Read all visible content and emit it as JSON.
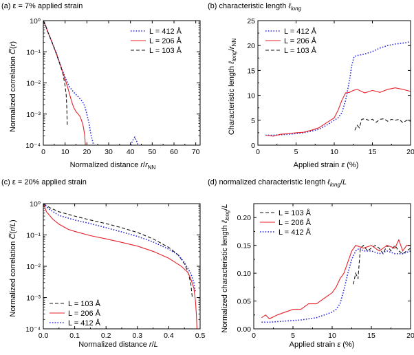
{
  "colors": {
    "L412": "#2b2bd6",
    "L206": "#e8202a",
    "L103": "#111111",
    "axis": "#000000"
  },
  "chart_data": [
    {
      "id": "a",
      "type": "line",
      "title": "(a) ε = 7% applied strain",
      "xlabel": "Normalized distance r/r_NN",
      "ylabel": "Normalized correlation C̅(r)",
      "xlim": [
        0,
        72
      ],
      "ylim": [
        0.0001,
        1
      ],
      "yscale": "log",
      "xticks": [
        0,
        10,
        20,
        30,
        40,
        50,
        60,
        70
      ],
      "xtick_labels": [
        "0",
        "10",
        "20",
        "30",
        "40",
        "50",
        "60",
        "70"
      ],
      "ytick_labels": [
        "10⁻⁴",
        "10⁻³",
        "10⁻²",
        "10⁻¹",
        "10⁰"
      ],
      "legend": [
        {
          "label": "L = 412 Å",
          "style": "dotted",
          "color": "#2b2bd6"
        },
        {
          "label": "L = 206 Å",
          "style": "solid",
          "color": "#e8202a"
        },
        {
          "label": "L = 103 Å",
          "style": "dashed",
          "color": "#111111"
        }
      ],
      "legend_position": "top-right",
      "series": [
        {
          "name": "L = 412 Å",
          "x": [
            0,
            1,
            2,
            4,
            6,
            8,
            10,
            12,
            14,
            16,
            18,
            19,
            20,
            21,
            21.5,
            22,
            22.8,
            23.2
          ],
          "y": [
            1,
            0.7,
            0.45,
            0.2,
            0.09,
            0.035,
            0.015,
            0.0075,
            0.005,
            0.0036,
            0.0025,
            0.0018,
            0.001,
            0.0005,
            0.0003,
            0.0002,
            0.00012,
            0.0001
          ]
        },
        {
          "name": "L = 412 Å (tail)",
          "x": [
            40.2,
            41,
            42,
            42.8,
            43.5
          ],
          "y": [
            0.0001,
            0.00014,
            0.00018,
            0.00014,
            0.0001
          ]
        },
        {
          "name": "L = 206 Å",
          "x": [
            0,
            1,
            2,
            4,
            6,
            8,
            10,
            11,
            12,
            13,
            14,
            15,
            16,
            17,
            18,
            18.5,
            19,
            19.3
          ],
          "y": [
            1,
            0.7,
            0.45,
            0.2,
            0.085,
            0.035,
            0.013,
            0.008,
            0.0045,
            0.0025,
            0.0016,
            0.0012,
            0.001,
            0.0008,
            0.0005,
            0.00035,
            0.0002,
            0.0001
          ]
        },
        {
          "name": "L = 103 Å",
          "x": [
            0,
            1,
            2,
            4,
            6,
            8,
            9,
            10,
            10.5,
            10.8,
            11
          ],
          "y": [
            1,
            0.7,
            0.45,
            0.2,
            0.085,
            0.033,
            0.02,
            0.008,
            0.004,
            0.0015,
            0.0004
          ]
        }
      ]
    },
    {
      "id": "b",
      "type": "line",
      "title": "(b) characteristic length ℓ_long",
      "xlabel": "Applied strain ε (%)",
      "ylabel": "Characteristic length ℓ_long/r_NN",
      "xlim": [
        0,
        20
      ],
      "ylim": [
        0,
        25
      ],
      "xticks": [
        0,
        5,
        10,
        15,
        20
      ],
      "xtick_labels": [
        "0",
        "5",
        "10",
        "15",
        "20"
      ],
      "yticks": [
        0,
        5,
        10,
        15,
        20,
        25
      ],
      "ytick_labels": [
        "0",
        "5",
        "10",
        "15",
        "20",
        "25"
      ],
      "legend": [
        {
          "label": "L = 412 Å",
          "style": "dotted",
          "color": "#2b2bd6"
        },
        {
          "label": "L = 206 Å",
          "style": "solid",
          "color": "#e8202a"
        },
        {
          "label": "L = 103 Å",
          "style": "dashed",
          "color": "#111111"
        }
      ],
      "legend_position": "top-left",
      "series": [
        {
          "name": "L = 412 Å",
          "x": [
            1,
            2,
            3,
            4,
            5,
            6,
            7,
            8,
            9,
            10,
            10.5,
            11,
            11.5,
            12,
            12.3,
            12.6,
            13,
            14,
            15,
            16,
            17,
            18,
            19,
            19.5,
            20
          ],
          "y": [
            2,
            2,
            2.1,
            2.2,
            2.3,
            2.5,
            2.8,
            3.2,
            4,
            5,
            5.5,
            6.5,
            9,
            13,
            16,
            17.8,
            18,
            18.3,
            18.8,
            19.5,
            20,
            20.3,
            20.5,
            20.6,
            20.8
          ]
        },
        {
          "name": "L = 206 Å",
          "x": [
            1,
            2,
            3,
            4,
            5,
            6,
            7,
            8,
            9,
            10,
            10.5,
            11,
            11.5,
            12,
            12.5,
            13,
            14,
            15,
            16,
            17,
            18,
            19,
            20
          ],
          "y": [
            2,
            1.8,
            2.2,
            2.3,
            2.5,
            2.6,
            3,
            3.5,
            4.5,
            5.5,
            7,
            9,
            10.5,
            10.6,
            11,
            11.2,
            10.5,
            11,
            10.6,
            11.2,
            11.5,
            11.2,
            10.8
          ]
        },
        {
          "name": "L = 103 Å",
          "x": [
            12.7,
            13,
            13.3,
            13.6,
            14,
            14.5,
            15,
            15.5,
            16,
            16.5,
            17,
            17.5,
            18,
            18.5,
            19,
            19.5,
            20
          ],
          "y": [
            3,
            4,
            3.5,
            5.2,
            5.3,
            5,
            5.2,
            4.6,
            5.2,
            5.3,
            4.8,
            5.2,
            5,
            5.2,
            4.5,
            5,
            4.8
          ]
        }
      ]
    },
    {
      "id": "c",
      "type": "line",
      "title": "(c) ε = 20% applied strain",
      "xlabel": "Normalized distance r/L",
      "ylabel": "Normalized correlation C̅(r/L)",
      "xlim": [
        0,
        0.5
      ],
      "ylim": [
        0.0001,
        1
      ],
      "yscale": "log",
      "xticks": [
        0,
        0.1,
        0.2,
        0.3,
        0.4,
        0.5
      ],
      "xtick_labels": [
        "0.0",
        "0.1",
        "0.2",
        "0.3",
        "0.4",
        "0.5"
      ],
      "ytick_labels": [
        "10⁻⁴",
        "10⁻³",
        "10⁻²",
        "10⁻¹",
        "10⁰"
      ],
      "legend": [
        {
          "label": "L = 103 Å",
          "style": "dashed",
          "color": "#111111"
        },
        {
          "label": "L = 206 Å",
          "style": "solid",
          "color": "#e8202a"
        },
        {
          "label": "L = 412 Å",
          "style": "dotted",
          "color": "#2b2bd6"
        }
      ],
      "legend_position": "bottom-left",
      "series": [
        {
          "name": "L = 103 Å",
          "x": [
            0,
            0.02,
            0.05,
            0.1,
            0.15,
            0.2,
            0.25,
            0.3,
            0.35,
            0.4,
            0.43,
            0.45,
            0.46,
            0.47,
            0.475
          ],
          "y": [
            1,
            0.75,
            0.55,
            0.4,
            0.3,
            0.23,
            0.17,
            0.12,
            0.075,
            0.04,
            0.023,
            0.012,
            0.007,
            0.003,
            0.001
          ]
        },
        {
          "name": "L = 206 Å",
          "x": [
            0,
            0.01,
            0.03,
            0.05,
            0.08,
            0.1,
            0.15,
            0.2,
            0.25,
            0.3,
            0.35,
            0.4,
            0.44,
            0.46,
            0.47,
            0.48,
            0.485,
            0.488,
            0.49
          ],
          "y": [
            1,
            0.55,
            0.32,
            0.22,
            0.15,
            0.13,
            0.095,
            0.075,
            0.058,
            0.044,
            0.03,
            0.018,
            0.01,
            0.0065,
            0.004,
            0.002,
            0.0008,
            0.0003,
            0.0001
          ]
        },
        {
          "name": "L = 412 Å",
          "x": [
            0,
            0.02,
            0.05,
            0.1,
            0.15,
            0.2,
            0.25,
            0.3,
            0.35,
            0.4,
            0.43,
            0.45,
            0.47,
            0.48,
            0.485
          ],
          "y": [
            1,
            0.65,
            0.42,
            0.3,
            0.23,
            0.17,
            0.125,
            0.09,
            0.06,
            0.035,
            0.023,
            0.013,
            0.006,
            0.003,
            0.0015
          ]
        }
      ]
    },
    {
      "id": "d",
      "type": "line",
      "title": "(d) normalized characteristic length ℓ_long/L",
      "xlabel": "Applied strain ε (%)",
      "ylabel": "Normalized characteristic length ℓ_long/L",
      "xlim": [
        0,
        20
      ],
      "ylim": [
        0,
        0.225
      ],
      "xticks": [
        0,
        5,
        10,
        15,
        20
      ],
      "xtick_labels": [
        "0",
        "5",
        "10",
        "15",
        "20"
      ],
      "yticks": [
        0,
        0.05,
        0.1,
        0.15,
        0.2
      ],
      "ytick_labels": [
        "0.00",
        "0.05",
        "0.10",
        "0.15",
        "0.20"
      ],
      "legend": [
        {
          "label": "L = 103 Å",
          "style": "dashed",
          "color": "#111111"
        },
        {
          "label": "L = 206 Å",
          "style": "solid",
          "color": "#e8202a"
        },
        {
          "label": "L = 412 Å",
          "style": "dotted",
          "color": "#2b2bd6"
        }
      ],
      "legend_position": "top-left",
      "series": [
        {
          "name": "L = 103 Å",
          "x": [
            12.7,
            13,
            13.3,
            13.6,
            14,
            14.5,
            15,
            15.5,
            16,
            16.5,
            17,
            17.5,
            18,
            18.5,
            19,
            19.5,
            20
          ],
          "y": [
            0.08,
            0.1,
            0.09,
            0.145,
            0.15,
            0.14,
            0.145,
            0.15,
            0.145,
            0.135,
            0.15,
            0.14,
            0.15,
            0.14,
            0.135,
            0.14,
            0.145
          ]
        },
        {
          "name": "L = 206 Å",
          "x": [
            1,
            1.5,
            2,
            3,
            4,
            5,
            6,
            7,
            8,
            9,
            10,
            10.5,
            11,
            11.5,
            12,
            12.5,
            13,
            14,
            15,
            16,
            17,
            18,
            18.5,
            19,
            19.5,
            20
          ],
          "y": [
            0.02,
            0.025,
            0.018,
            0.025,
            0.03,
            0.035,
            0.035,
            0.045,
            0.045,
            0.055,
            0.065,
            0.075,
            0.09,
            0.1,
            0.12,
            0.14,
            0.15,
            0.145,
            0.15,
            0.14,
            0.15,
            0.145,
            0.16,
            0.14,
            0.15,
            0.15
          ]
        },
        {
          "name": "L = 412 Å",
          "x": [
            1,
            2,
            3,
            4,
            5,
            6,
            7,
            8,
            9,
            10,
            10.5,
            11,
            11.5,
            12,
            12.5,
            13,
            13.5,
            14,
            15,
            16,
            17,
            18,
            19,
            20
          ],
          "y": [
            0.012,
            0.012,
            0.013,
            0.014,
            0.015,
            0.016,
            0.018,
            0.02,
            0.025,
            0.03,
            0.035,
            0.045,
            0.07,
            0.1,
            0.125,
            0.14,
            0.145,
            0.14,
            0.14,
            0.135,
            0.14,
            0.135,
            0.135,
            0.14
          ]
        }
      ]
    }
  ]
}
